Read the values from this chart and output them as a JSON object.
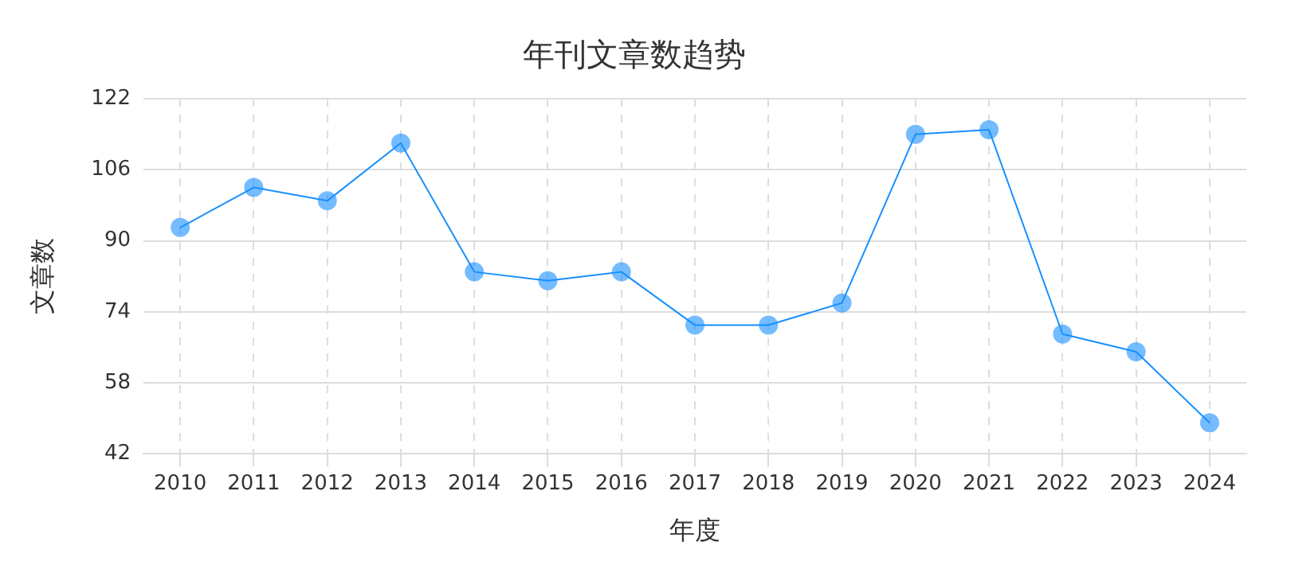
{
  "chart_data": {
    "type": "line",
    "title": "年刊文章数趋势",
    "xlabel": "年度",
    "ylabel": "文章数",
    "categories": [
      "2010",
      "2011",
      "2012",
      "2013",
      "2014",
      "2015",
      "2016",
      "2017",
      "2018",
      "2019",
      "2020",
      "2021",
      "2022",
      "2023",
      "2024"
    ],
    "series": [
      {
        "color": "#1890ff",
        "values": [
          93,
          102,
          99,
          112,
          83,
          81,
          83,
          71,
          71,
          76,
          114,
          115,
          69,
          65,
          49
        ]
      }
    ],
    "ylim": [
      42,
      122
    ],
    "yticks": [
      42,
      58,
      74,
      90,
      106,
      122
    ],
    "grid": true,
    "legend": false,
    "marker": "circle",
    "line_style": "solid"
  }
}
